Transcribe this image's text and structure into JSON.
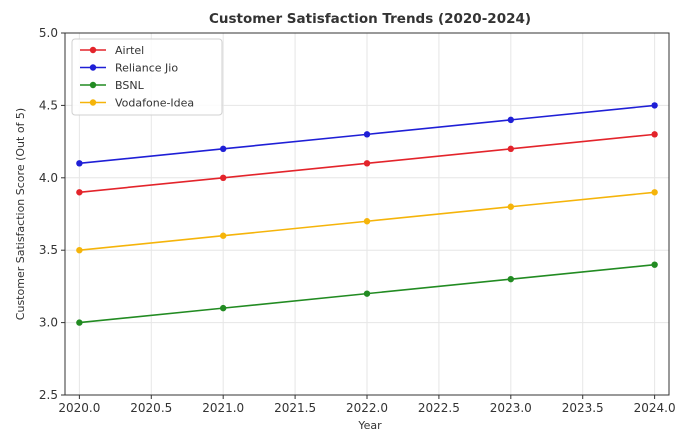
{
  "chart_data": {
    "type": "line",
    "title": "Customer Satisfaction Trends (2020-2024)",
    "xlabel": "Year",
    "ylabel": "Customer Satisfaction Score (Out of 5)",
    "x": [
      2020,
      2021,
      2022,
      2023,
      2024
    ],
    "xlim": [
      2019.9,
      2024.1
    ],
    "ylim": [
      2.5,
      5.0
    ],
    "x_ticks": [
      "2020.0",
      "2020.5",
      "2021.0",
      "2021.5",
      "2022.0",
      "2022.5",
      "2023.0",
      "2023.5",
      "2024.0"
    ],
    "y_ticks": [
      "2.5",
      "3.0",
      "3.5",
      "4.0",
      "4.5",
      "5.0"
    ],
    "grid": true,
    "legend_position": "top-left",
    "series": [
      {
        "name": "Airtel",
        "color": "#e3242b",
        "values": [
          3.9,
          4.0,
          4.1,
          4.2,
          4.3
        ]
      },
      {
        "name": "Reliance Jio",
        "color": "#1f1fd6",
        "values": [
          4.1,
          4.2,
          4.3,
          4.4,
          4.5
        ]
      },
      {
        "name": "BSNL",
        "color": "#228b22",
        "values": [
          3.0,
          3.1,
          3.2,
          3.3,
          3.4
        ]
      },
      {
        "name": "Vodafone-Idea",
        "color": "#f5b40a",
        "values": [
          3.5,
          3.6,
          3.7,
          3.8,
          3.9
        ]
      }
    ]
  }
}
